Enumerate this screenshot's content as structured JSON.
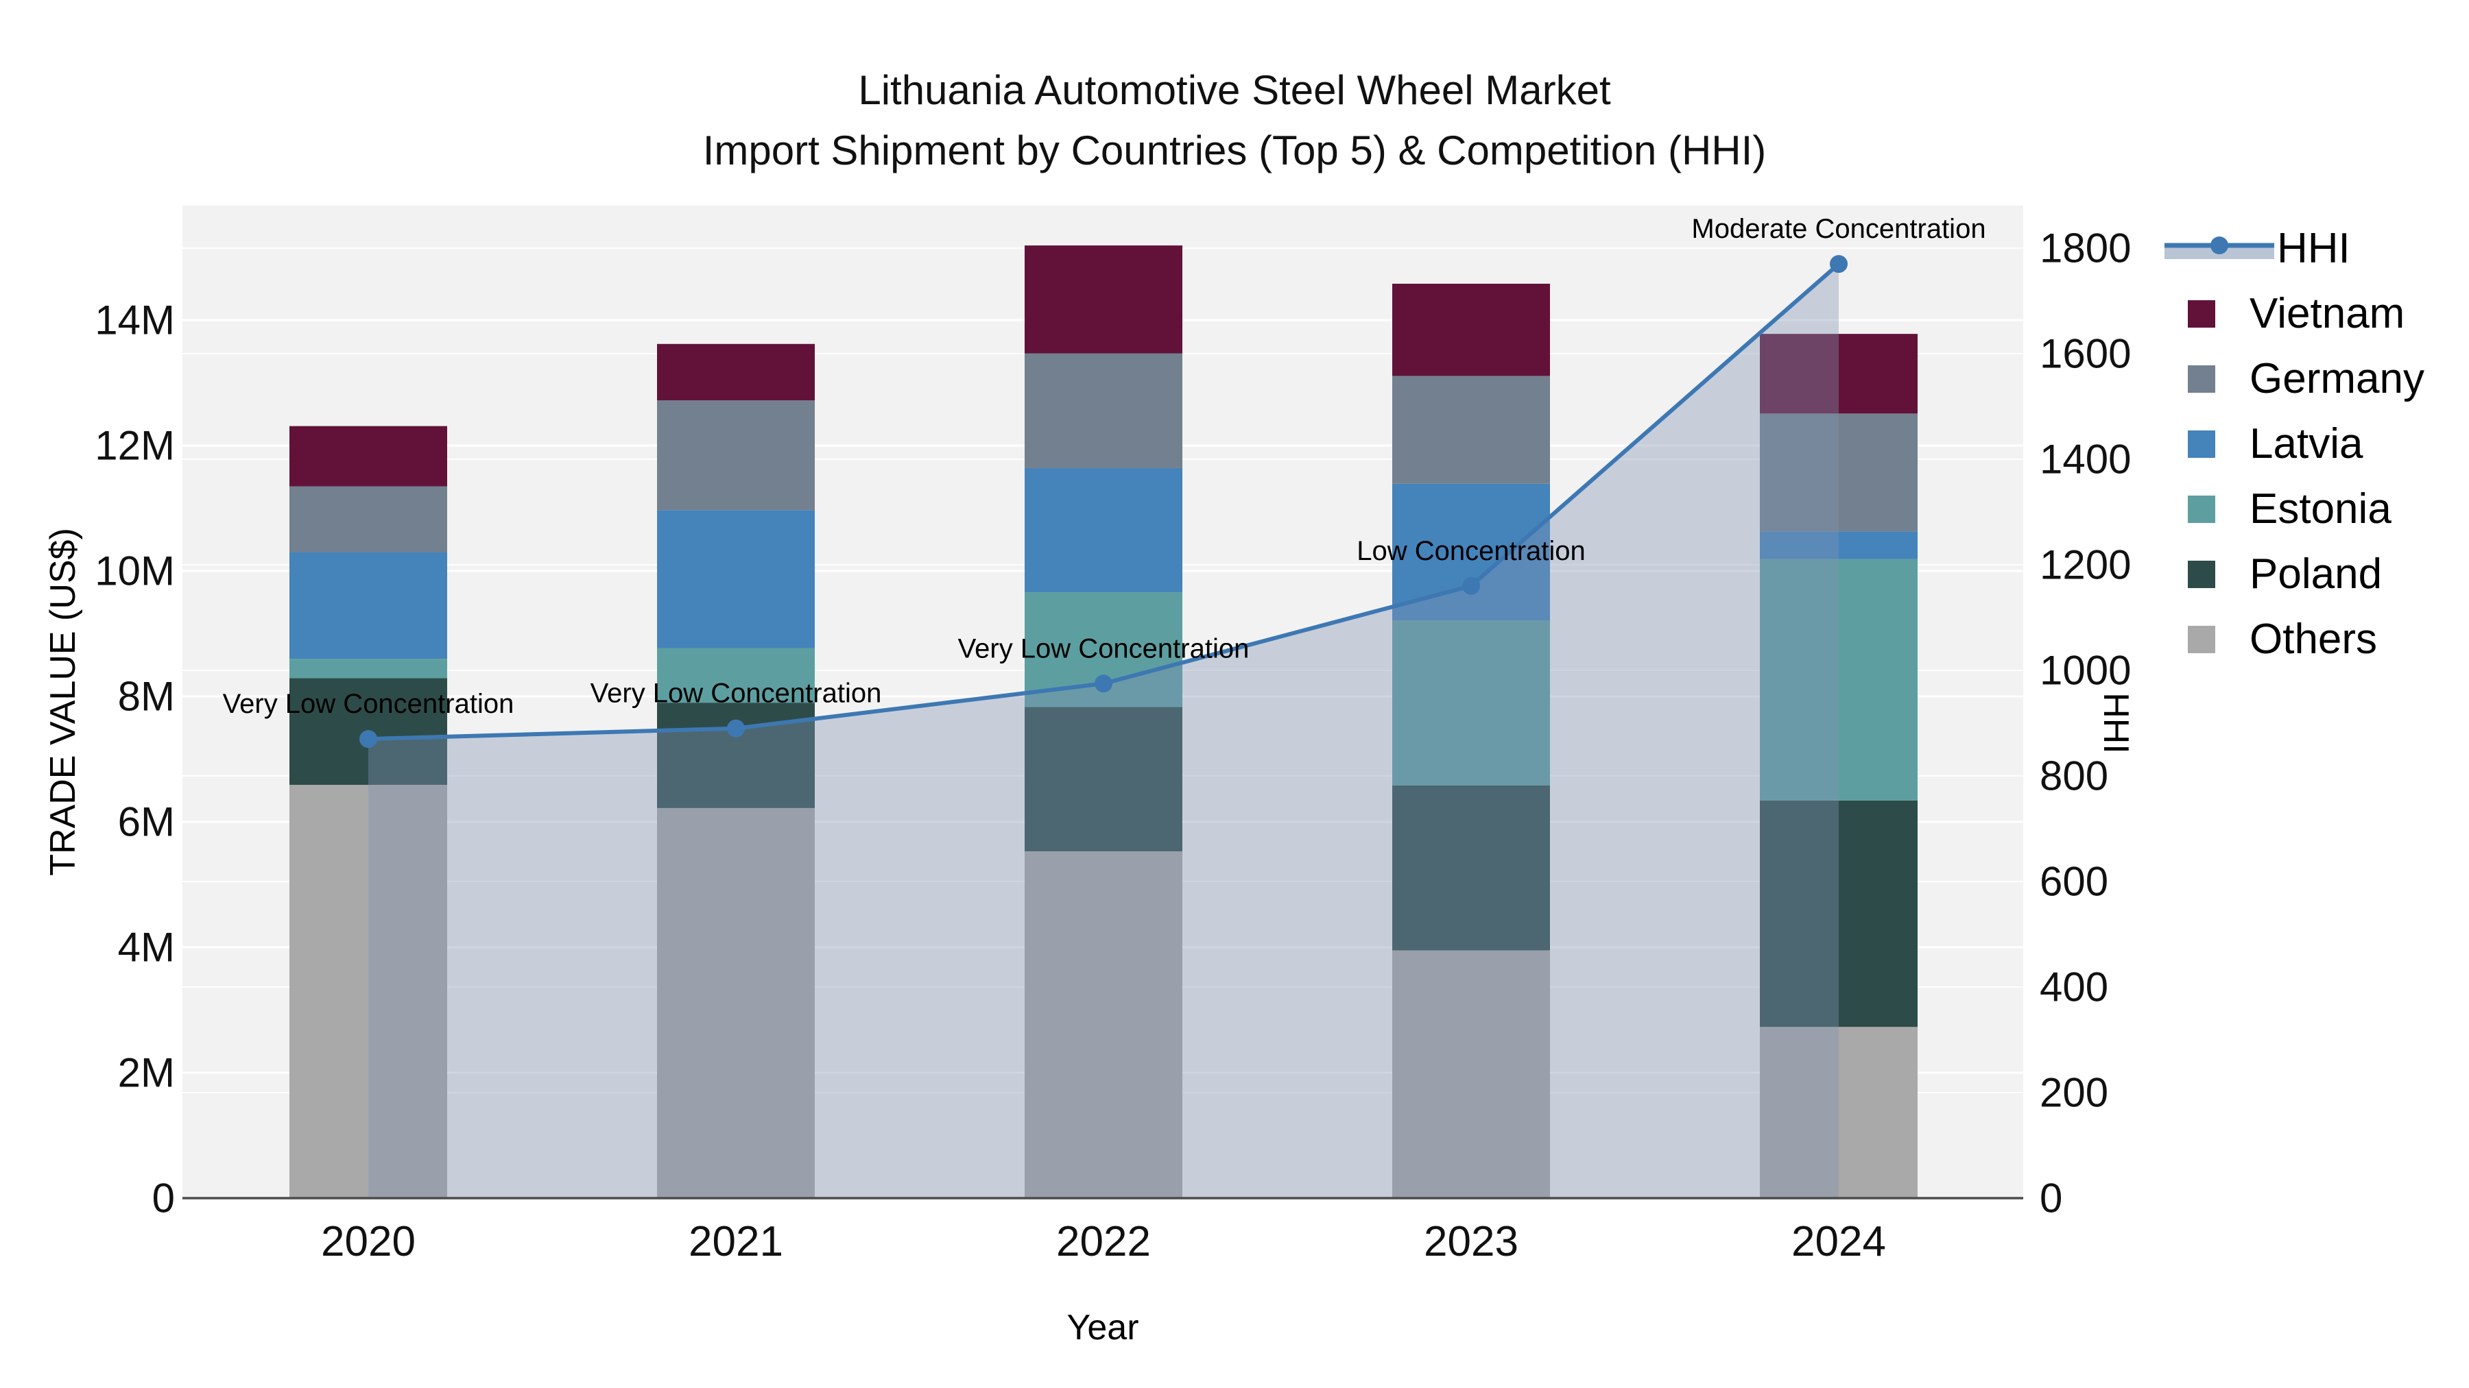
{
  "title": {
    "line1": "Lithuania Automotive Steel Wheel Market",
    "line2": "Import Shipment by Countries (Top 5) & Competition (HHI)"
  },
  "colors": {
    "plot_bg": "#f2f2f2",
    "grid": "#ffffff",
    "axis_line": "#4d4d4d",
    "text": "#111111",
    "hhi_line": "#3d78b3",
    "hhi_area": "rgba(128,148,178,0.38)"
  },
  "chart_data": {
    "type": "combo: stacked bar (left axis) + line with area fill (right axis)",
    "title": "Lithuania Automotive Steel Wheel Market",
    "subtitle": "Import Shipment by Countries (Top 5) & Competition (HHI)",
    "categories": [
      "2020",
      "2021",
      "2022",
      "2023",
      "2024"
    ],
    "xlabel": "Year",
    "left_axis": {
      "title": "TRADE VALUE (US$)",
      "unit": "US$ millions",
      "ticks": [
        "0",
        "2M",
        "4M",
        "6M",
        "8M",
        "10M",
        "12M",
        "14M"
      ],
      "tick_values_m": [
        0,
        2,
        4,
        6,
        8,
        10,
        12,
        14
      ],
      "range_m": [
        0,
        15.8
      ]
    },
    "right_axis": {
      "title": "HHI",
      "ticks": [
        0,
        200,
        400,
        600,
        800,
        1000,
        1200,
        1400,
        1600,
        1800
      ],
      "range": [
        0,
        1880
      ]
    },
    "grid": "on",
    "legend_position": "right",
    "legend_order": [
      "HHI",
      "Vietnam",
      "Germany",
      "Latvia",
      "Estonia",
      "Poland",
      "Others"
    ],
    "stack_order_bottom_to_top": [
      "Others",
      "Poland",
      "Estonia",
      "Latvia",
      "Germany",
      "Vietnam"
    ],
    "series": [
      {
        "name": "Others",
        "color": "#a9a9a9",
        "values_m": [
          6.59,
          6.22,
          5.53,
          3.95,
          2.73
        ]
      },
      {
        "name": "Poland",
        "color": "#2d4c49",
        "values_m": [
          1.7,
          1.68,
          2.3,
          2.63,
          3.61
        ]
      },
      {
        "name": "Estonia",
        "color": "#5d9fa0",
        "values_m": [
          0.31,
          0.87,
          1.83,
          2.63,
          3.85
        ]
      },
      {
        "name": "Latvia",
        "color": "#4583bb",
        "values_m": [
          1.7,
          2.2,
          1.98,
          2.18,
          0.44
        ]
      },
      {
        "name": "Germany",
        "color": "#72808f",
        "values_m": [
          1.05,
          1.75,
          1.83,
          1.72,
          1.88
        ]
      },
      {
        "name": "Vietnam",
        "color": "#621238",
        "values_m": [
          0.96,
          0.9,
          1.72,
          1.47,
          1.27
        ]
      }
    ],
    "totals_m": [
      12.31,
      13.62,
      15.19,
      14.58,
      13.78
    ],
    "line_series": {
      "name": "HHI",
      "axis": "right",
      "values": [
        870,
        890,
        975,
        1160,
        1770
      ]
    },
    "annotations": [
      {
        "category": "2020",
        "text": "Very Low Concentration"
      },
      {
        "category": "2021",
        "text": "Very Low Concentration"
      },
      {
        "category": "2022",
        "text": "Very Low Concentration"
      },
      {
        "category": "2023",
        "text": "Low Concentration"
      },
      {
        "category": "2024",
        "text": "Moderate Concentration"
      }
    ]
  }
}
